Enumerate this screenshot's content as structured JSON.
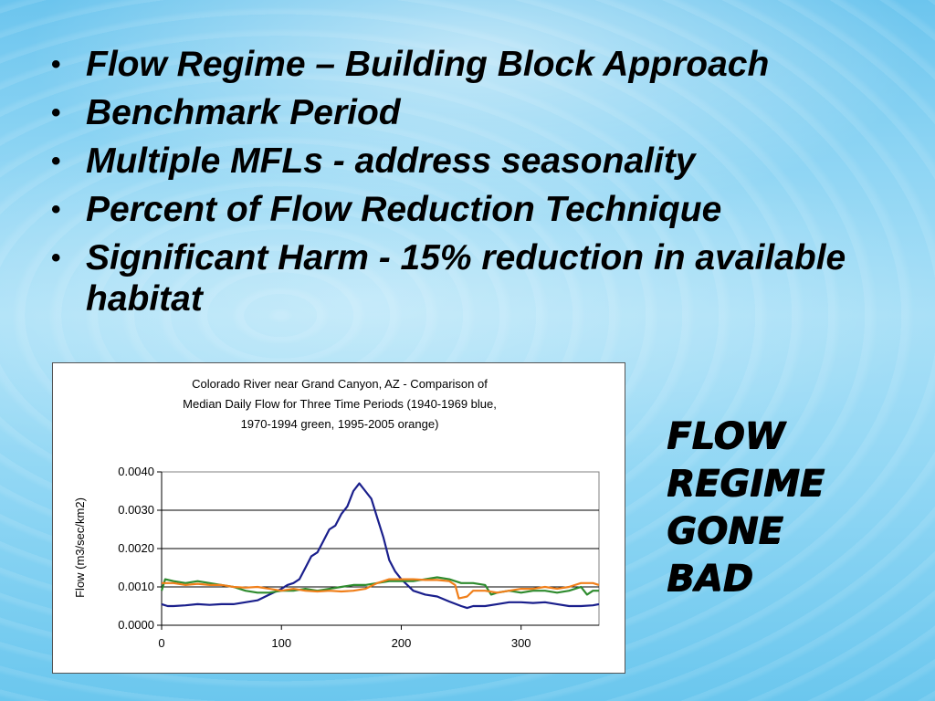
{
  "bullets": [
    "Flow Regime – Building Block Approach",
    "Benchmark Period",
    "Multiple MFLs - address seasonality",
    "Percent of Flow Reduction Technique",
    "Significant Harm - 15% reduction in available habitat"
  ],
  "bullet_symbol": "•",
  "side_label": [
    "FLOW",
    "REGIME",
    "GONE",
    "BAD"
  ],
  "chart_data": {
    "type": "line",
    "title_lines": [
      "Colorado River near Grand Canyon, AZ - Comparison of",
      "Median Daily Flow for Three Time Periods (1940-1969 blue,",
      "1970-1994 green, 1995-2005 orange)"
    ],
    "xlabel": "",
    "ylabel": "Flow (m3/sec/km2)",
    "xlim": [
      0,
      365
    ],
    "ylim": [
      0,
      0.004
    ],
    "xticks": [
      0,
      100,
      200,
      300
    ],
    "xtick_labels": [
      "0",
      "100",
      "200",
      "300"
    ],
    "yticks": [
      0,
      0.001,
      0.002,
      0.003,
      0.004
    ],
    "ytick_labels": [
      "0.0000",
      "0.0010",
      "0.0020",
      "0.0030",
      "0.0040"
    ],
    "grid": "horizontal",
    "series": [
      {
        "color": "#1a1f8c",
        "points": [
          [
            0,
            0.00055
          ],
          [
            5,
            0.0005
          ],
          [
            10,
            0.0005
          ],
          [
            20,
            0.00052
          ],
          [
            30,
            0.00055
          ],
          [
            40,
            0.00053
          ],
          [
            50,
            0.00055
          ],
          [
            60,
            0.00055
          ],
          [
            70,
            0.0006
          ],
          [
            80,
            0.00065
          ],
          [
            90,
            0.0008
          ],
          [
            100,
            0.00095
          ],
          [
            105,
            0.00105
          ],
          [
            110,
            0.0011
          ],
          [
            115,
            0.0012
          ],
          [
            120,
            0.0015
          ],
          [
            125,
            0.0018
          ],
          [
            130,
            0.0019
          ],
          [
            135,
            0.0022
          ],
          [
            140,
            0.0025
          ],
          [
            145,
            0.0026
          ],
          [
            150,
            0.0029
          ],
          [
            155,
            0.0031
          ],
          [
            160,
            0.0035
          ],
          [
            165,
            0.0037
          ],
          [
            170,
            0.0035
          ],
          [
            175,
            0.0033
          ],
          [
            180,
            0.0028
          ],
          [
            185,
            0.0023
          ],
          [
            190,
            0.0017
          ],
          [
            195,
            0.0014
          ],
          [
            200,
            0.0012
          ],
          [
            210,
            0.0009
          ],
          [
            220,
            0.0008
          ],
          [
            230,
            0.00075
          ],
          [
            240,
            0.00062
          ],
          [
            250,
            0.0005
          ],
          [
            255,
            0.00045
          ],
          [
            260,
            0.0005
          ],
          [
            270,
            0.0005
          ],
          [
            280,
            0.00055
          ],
          [
            290,
            0.0006
          ],
          [
            300,
            0.0006
          ],
          [
            310,
            0.00058
          ],
          [
            320,
            0.0006
          ],
          [
            330,
            0.00055
          ],
          [
            340,
            0.0005
          ],
          [
            350,
            0.0005
          ],
          [
            360,
            0.00052
          ],
          [
            365,
            0.00055
          ]
        ]
      },
      {
        "color": "#2e8b2e",
        "points": [
          [
            0,
            0.0009
          ],
          [
            3,
            0.0012
          ],
          [
            10,
            0.00115
          ],
          [
            20,
            0.0011
          ],
          [
            30,
            0.00115
          ],
          [
            40,
            0.0011
          ],
          [
            50,
            0.00105
          ],
          [
            60,
            0.001
          ],
          [
            70,
            0.0009
          ],
          [
            80,
            0.00085
          ],
          [
            90,
            0.00085
          ],
          [
            100,
            0.0009
          ],
          [
            110,
            0.0009
          ],
          [
            120,
            0.00095
          ],
          [
            130,
            0.0009
          ],
          [
            140,
            0.00095
          ],
          [
            150,
            0.001
          ],
          [
            160,
            0.00105
          ],
          [
            170,
            0.00105
          ],
          [
            180,
            0.0011
          ],
          [
            190,
            0.00115
          ],
          [
            200,
            0.00115
          ],
          [
            210,
            0.00115
          ],
          [
            220,
            0.0012
          ],
          [
            230,
            0.00125
          ],
          [
            240,
            0.0012
          ],
          [
            250,
            0.0011
          ],
          [
            260,
            0.0011
          ],
          [
            270,
            0.00105
          ],
          [
            275,
            0.0008
          ],
          [
            280,
            0.00085
          ],
          [
            290,
            0.0009
          ],
          [
            300,
            0.00085
          ],
          [
            310,
            0.0009
          ],
          [
            320,
            0.0009
          ],
          [
            330,
            0.00085
          ],
          [
            340,
            0.0009
          ],
          [
            350,
            0.001
          ],
          [
            355,
            0.0008
          ],
          [
            360,
            0.0009
          ],
          [
            365,
            0.0009
          ]
        ]
      },
      {
        "color": "#f07f1a",
        "points": [
          [
            0,
            0.0011
          ],
          [
            10,
            0.0011
          ],
          [
            20,
            0.00105
          ],
          [
            30,
            0.00108
          ],
          [
            40,
            0.00105
          ],
          [
            50,
            0.00105
          ],
          [
            60,
            0.001
          ],
          [
            70,
            0.00098
          ],
          [
            80,
            0.001
          ],
          [
            90,
            0.00095
          ],
          [
            100,
            0.0009
          ],
          [
            110,
            0.00095
          ],
          [
            120,
            0.0009
          ],
          [
            130,
            0.00088
          ],
          [
            140,
            0.0009
          ],
          [
            150,
            0.00088
          ],
          [
            160,
            0.0009
          ],
          [
            170,
            0.00095
          ],
          [
            180,
            0.0011
          ],
          [
            190,
            0.0012
          ],
          [
            200,
            0.0012
          ],
          [
            210,
            0.0012
          ],
          [
            220,
            0.00118
          ],
          [
            230,
            0.00118
          ],
          [
            240,
            0.00115
          ],
          [
            245,
            0.00105
          ],
          [
            248,
            0.0007
          ],
          [
            255,
            0.00075
          ],
          [
            260,
            0.0009
          ],
          [
            270,
            0.0009
          ],
          [
            280,
            0.00085
          ],
          [
            290,
            0.0009
          ],
          [
            300,
            0.00095
          ],
          [
            310,
            0.00095
          ],
          [
            320,
            0.001
          ],
          [
            330,
            0.00095
          ],
          [
            340,
            0.001
          ],
          [
            350,
            0.0011
          ],
          [
            360,
            0.0011
          ],
          [
            365,
            0.00105
          ]
        ]
      }
    ]
  }
}
